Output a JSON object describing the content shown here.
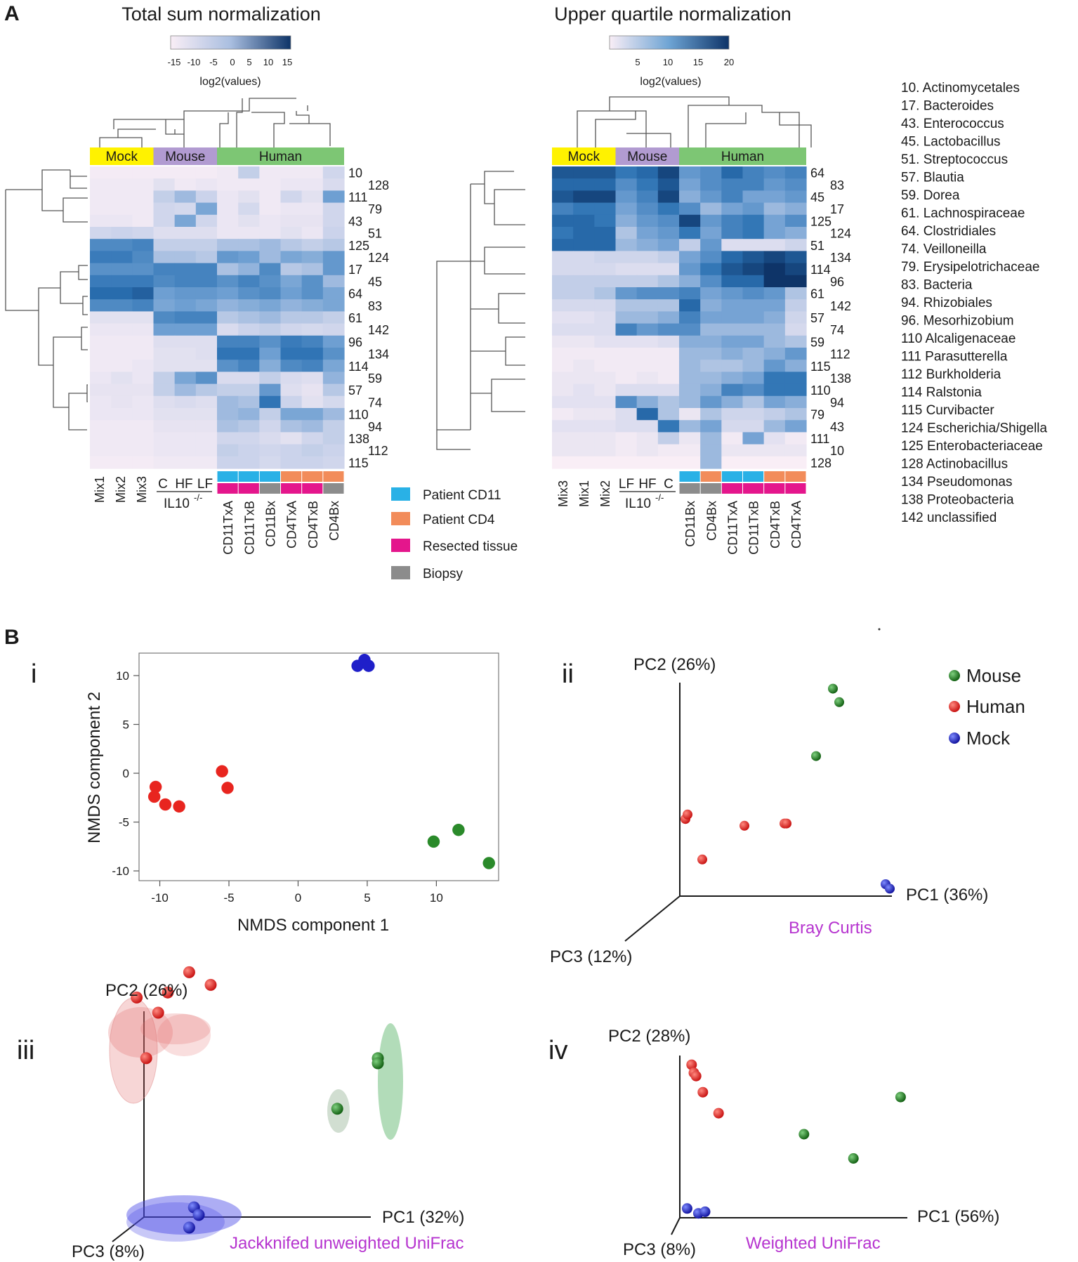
{
  "panels": {
    "A": "A",
    "B": "B"
  },
  "heatmap_common": {
    "groups": [
      "Mock",
      "Mouse",
      "Human"
    ],
    "group_colors": {
      "Mock": "#fff200",
      "Mouse": "#b19bd1",
      "Human": "#7dc674"
    },
    "il10_label": "IL10",
    "il10_super": "-/-",
    "scale_label": "log2(values)"
  },
  "heatmap_left": {
    "title": "Total sum normalization",
    "scale_ticks": [
      "-15",
      "-10",
      "-5",
      "0",
      "5",
      "10",
      "15"
    ],
    "mock_cols": [
      "Mix1",
      "Mix2",
      "Mix3"
    ],
    "mouse_cols": [
      "C",
      "HF",
      "LF"
    ],
    "human_cols": [
      "CD11TxA",
      "CD11TxB",
      "CD11Bx",
      "CD4TxA",
      "CD4TxB",
      "CD4Bx"
    ],
    "human_patient": [
      "CD11",
      "CD11",
      "CD11",
      "CD4",
      "CD4",
      "CD4"
    ],
    "human_tissue": [
      "R",
      "R",
      "B",
      "R",
      "R",
      "B"
    ],
    "rows": [
      "10",
      "128",
      "111",
      "79",
      "43",
      "51",
      "125",
      "124",
      "17",
      "45",
      "64",
      "83",
      "61",
      "142",
      "96",
      "134",
      "114",
      "59",
      "57",
      "74",
      "110",
      "94",
      "138",
      "112",
      "115"
    ]
  },
  "heatmap_right": {
    "title": "Upper quartile normalization",
    "scale_ticks": [
      "5",
      "10",
      "15",
      "20"
    ],
    "mock_cols": [
      "Mix3",
      "Mix1",
      "Mix2"
    ],
    "mouse_cols": [
      "LF",
      "HF",
      "C"
    ],
    "human_cols": [
      "CD11Bx",
      "CD4Bx",
      "CD11TxA",
      "CD11TxB",
      "CD4TxB",
      "CD4TxA"
    ],
    "human_patient": [
      "CD11",
      "CD4",
      "CD11",
      "CD11",
      "CD4",
      "CD4"
    ],
    "human_tissue": [
      "B",
      "B",
      "R",
      "R",
      "R",
      "R"
    ],
    "rows": [
      "64",
      "83",
      "45",
      "17",
      "125",
      "124",
      "51",
      "134",
      "114",
      "96",
      "61",
      "142",
      "57",
      "74",
      "59",
      "112",
      "115",
      "138",
      "110",
      "94",
      "79",
      "43",
      "111",
      "10",
      "128"
    ]
  },
  "annotation_legend": [
    {
      "label": "Patient CD11",
      "color": "#29b1e6"
    },
    {
      "label": "Patient CD4",
      "color": "#f28c5a"
    },
    {
      "label": "Resected tissue",
      "color": "#e4168c"
    },
    {
      "label": "Biopsy",
      "color": "#8c8c8c"
    }
  ],
  "taxa": [
    "10. Actinomycetales",
    "17. Bacteroides",
    "43. Enterococcus",
    "45. Lactobacillus",
    "51. Streptococcus",
    "57. Blautia",
    "59. Dorea",
    "61. Lachnospiraceae",
    "64. Clostridiales",
    "74. Veilloneilla",
    "79. Erysipelotrichaceae",
    "83. Bacteria",
    "94. Rhizobiales",
    "96. Mesorhizobium",
    "110  Alcaligenaceae",
    "111  Parasutterella",
    "112  Burkholderia",
    "114  Ralstonia",
    "115  Curvibacter",
    "124  Escherichia/Shigella",
    "125  Enterobacteriaceae",
    "128  Actinobacillus",
    "134  Pseudomonas",
    "138  Proteobacteria",
    "142  unclassified"
  ],
  "chart_data": [
    {
      "type": "heatmap",
      "title": "Total sum normalization",
      "columns": [
        "Mix1",
        "Mix2",
        "Mix3",
        "C",
        "HF",
        "LF",
        "CD11TxA",
        "CD11TxB",
        "CD11Bx",
        "CD4TxA",
        "CD4TxB",
        "CD4Bx"
      ],
      "rows": [
        "10",
        "128",
        "111",
        "79",
        "43",
        "51",
        "125",
        "124",
        "17",
        "45",
        "64",
        "83",
        "61",
        "142",
        "96",
        "134",
        "114",
        "59",
        "57",
        "74",
        "110",
        "94",
        "138",
        "112",
        "115"
      ],
      "scale": [
        -15,
        15
      ],
      "values": [
        [
          -14,
          -14,
          -14,
          -14,
          -14,
          -14,
          -13,
          -4,
          -13,
          -13,
          -13,
          -6
        ],
        [
          -13,
          -13,
          -13,
          -10,
          -13,
          -12,
          -13,
          -13,
          -13,
          -12,
          -12,
          -8
        ],
        [
          -13,
          -13,
          -13,
          -4,
          -1,
          -5,
          -12,
          -10,
          -13,
          -6,
          -10,
          3
        ],
        [
          -13,
          -13,
          -13,
          -6,
          -7,
          2,
          -12,
          -7,
          -13,
          -12,
          -12,
          -6
        ],
        [
          -12,
          -12,
          -13,
          -6,
          2,
          -6,
          -12,
          -10,
          -12,
          -11,
          -11,
          -6
        ],
        [
          -6,
          -5,
          -6,
          -9,
          -9,
          -9,
          -12,
          -12,
          -12,
          -10,
          -12,
          -5
        ],
        [
          6,
          6,
          7,
          -4,
          -4,
          -4,
          -2,
          -2,
          -1,
          -3,
          -4,
          -3
        ],
        [
          8,
          8,
          6,
          -2,
          -2,
          -3,
          4,
          3,
          -1,
          2,
          1,
          4
        ],
        [
          5,
          5,
          5,
          7,
          7,
          7,
          -2,
          0,
          6,
          -3,
          -2,
          4
        ],
        [
          8,
          8,
          8,
          6,
          7,
          7,
          5,
          7,
          5,
          2,
          5,
          -1
        ],
        [
          10,
          10,
          11,
          3,
          4,
          4,
          3,
          5,
          6,
          3,
          5,
          2
        ],
        [
          6,
          6,
          7,
          2,
          3,
          2,
          0,
          1,
          2,
          0,
          1,
          2
        ],
        [
          -10,
          -10,
          -10,
          6,
          7,
          7,
          -3,
          -2,
          -1,
          -3,
          -3,
          -4
        ],
        [
          -12,
          -12,
          -12,
          3,
          3,
          3,
          -8,
          -5,
          -4,
          -6,
          -7,
          -6
        ],
        [
          -13,
          -13,
          -13,
          -9,
          -9,
          -9,
          7,
          7,
          5,
          8,
          7,
          3
        ],
        [
          -13,
          -13,
          -13,
          -10,
          -10,
          -9,
          9,
          9,
          3,
          9,
          9,
          5
        ],
        [
          -13,
          -13,
          -12,
          -10,
          -10,
          -10,
          5,
          7,
          1,
          6,
          7,
          2
        ],
        [
          -12,
          -10,
          -12,
          -4,
          2,
          5,
          -8,
          -8,
          -4,
          -8,
          -9,
          0
        ],
        [
          -11,
          -11,
          -11,
          -4,
          -1,
          -3,
          -4,
          -4,
          4,
          -9,
          -11,
          -3
        ],
        [
          -12,
          -11,
          -12,
          -9,
          -8,
          -9,
          -1,
          -2,
          9,
          -5,
          -10,
          -7
        ],
        [
          -12,
          -12,
          -12,
          -10,
          -10,
          -10,
          -1,
          0,
          -4,
          2,
          2,
          -1
        ],
        [
          -13,
          -13,
          -13,
          -11,
          -11,
          -11,
          -2,
          -3,
          -6,
          -2,
          -1,
          -4
        ],
        [
          -13,
          -13,
          -13,
          -12,
          -12,
          -12,
          -6,
          -6,
          -8,
          -10,
          -6,
          -4
        ],
        [
          -13,
          -13,
          -13,
          -12,
          -12,
          -12,
          -4,
          -5,
          -6,
          -5,
          -4,
          -5
        ],
        [
          -14,
          -14,
          -14,
          -13,
          -13,
          -13,
          -5,
          -5,
          -7,
          -5,
          -5,
          -6
        ]
      ]
    },
    {
      "type": "heatmap",
      "title": "Upper quartile normalization",
      "columns": [
        "Mix3",
        "Mix1",
        "Mix2",
        "LF",
        "HF",
        "C",
        "CD11Bx",
        "CD4Bx",
        "CD11TxA",
        "CD11TxB",
        "CD4TxB",
        "CD4TxA"
      ],
      "rows": [
        "64",
        "83",
        "45",
        "17",
        "125",
        "124",
        "51",
        "134",
        "114",
        "96",
        "61",
        "142",
        "57",
        "74",
        "59",
        "112",
        "115",
        "138",
        "110",
        "94",
        "79",
        "43",
        "111",
        "10",
        "128"
      ],
      "scale": [
        1,
        20
      ],
      "values": [
        [
          18,
          18,
          18,
          16,
          17,
          19,
          13,
          14,
          17,
          15,
          14,
          15
        ],
        [
          17,
          17,
          17,
          14,
          16,
          18,
          12,
          14,
          15,
          15,
          13,
          14
        ],
        [
          18,
          19,
          19,
          13,
          15,
          19,
          11,
          13,
          15,
          12,
          12,
          13
        ],
        [
          15,
          16,
          16,
          12,
          14,
          16,
          14,
          10,
          12,
          13,
          10,
          11
        ],
        [
          17,
          17,
          16,
          11,
          13,
          14,
          19,
          13,
          15,
          16,
          12,
          14
        ],
        [
          16,
          17,
          17,
          9,
          12,
          13,
          16,
          12,
          15,
          16,
          12,
          11
        ],
        [
          17,
          17,
          17,
          10,
          11,
          12,
          8,
          13,
          5,
          5,
          5,
          7
        ],
        [
          6,
          6,
          7,
          7,
          7,
          8,
          12,
          14,
          17,
          18,
          19,
          18
        ],
        [
          6,
          6,
          6,
          5,
          5,
          5,
          13,
          16,
          18,
          19,
          20,
          19
        ],
        [
          8,
          8,
          8,
          8,
          8,
          9,
          11,
          14,
          17,
          17,
          20,
          20
        ],
        [
          8,
          8,
          9,
          13,
          14,
          14,
          15,
          12,
          13,
          14,
          13,
          9
        ],
        [
          6,
          6,
          6,
          9,
          9,
          9,
          17,
          11,
          12,
          12,
          12,
          8
        ],
        [
          4,
          4,
          5,
          10,
          10,
          11,
          15,
          12,
          12,
          12,
          11,
          7
        ],
        [
          5,
          5,
          5,
          15,
          13,
          14,
          14,
          10,
          10,
          10,
          10,
          6
        ],
        [
          3,
          3,
          4,
          4,
          4,
          5,
          11,
          11,
          12,
          12,
          10,
          9
        ],
        [
          2,
          2,
          2,
          2,
          2,
          2,
          10,
          10,
          11,
          10,
          11,
          13
        ],
        [
          2,
          3,
          2,
          2,
          2,
          2,
          10,
          9,
          9,
          10,
          13,
          11
        ],
        [
          3,
          3,
          3,
          2,
          3,
          2,
          10,
          10,
          11,
          12,
          16,
          16
        ],
        [
          3,
          4,
          3,
          5,
          5,
          5,
          10,
          11,
          15,
          14,
          16,
          16
        ],
        [
          4,
          4,
          4,
          14,
          11,
          9,
          10,
          13,
          11,
          9,
          12,
          11
        ],
        [
          2,
          3,
          3,
          5,
          17,
          9,
          3,
          9,
          7,
          7,
          8,
          9
        ],
        [
          4,
          4,
          4,
          5,
          5,
          16,
          10,
          12,
          6,
          6,
          10,
          12
        ],
        [
          3,
          3,
          3,
          2,
          3,
          8,
          3,
          10,
          2,
          12,
          4,
          2
        ],
        [
          3,
          3,
          3,
          2,
          3,
          2,
          2,
          10,
          3,
          3,
          3,
          3
        ],
        [
          1,
          1,
          1,
          1,
          1,
          1,
          1,
          10,
          1,
          1,
          1,
          1
        ]
      ]
    },
    {
      "type": "scatter",
      "title": "i",
      "xlabel": "NMDS component 1",
      "ylabel": "NMDS component 2",
      "xlim": [
        -11.5,
        14.5
      ],
      "ylim": [
        -11,
        12.3
      ],
      "xticks": [
        "-10",
        "-5",
        "0",
        "5",
        "10"
      ],
      "yticks": [
        "10",
        "5",
        "0",
        "-5",
        "-10"
      ],
      "series": [
        {
          "name": "Human",
          "color": "#e8251f",
          "points": [
            [
              -10.3,
              -1.4
            ],
            [
              -10.4,
              -2.4
            ],
            [
              -9.6,
              -3.2
            ],
            [
              -8.6,
              -3.4
            ],
            [
              -5.5,
              0.2
            ],
            [
              -5.1,
              -1.5
            ]
          ]
        },
        {
          "name": "Mouse",
          "color": "#2a8a2a",
          "points": [
            [
              9.8,
              -7.0
            ],
            [
              11.6,
              -5.8
            ],
            [
              13.8,
              -9.2
            ]
          ]
        },
        {
          "name": "Mock",
          "color": "#1f1fc9",
          "points": [
            [
              4.3,
              11.0
            ],
            [
              4.8,
              11.6
            ],
            [
              5.1,
              11.0
            ]
          ]
        }
      ]
    },
    {
      "type": "scatter",
      "title": "ii",
      "method": "Bray Curtis",
      "axes": [
        "PC1 (36%)",
        "PC2 (26%)",
        "PC3 (12%)"
      ],
      "legend": [
        "Mouse",
        "Human",
        "Mock"
      ],
      "series": [
        {
          "name": "Mouse",
          "color": "#2a8a2a",
          "points": [
            [
              0.72,
              0.92
            ],
            [
              0.75,
              0.86
            ],
            [
              0.64,
              0.62
            ]
          ]
        },
        {
          "name": "Human",
          "color": "#e8251f",
          "points": [
            [
              0.02,
              0.34
            ],
            [
              0.03,
              0.36
            ],
            [
              0.1,
              0.16
            ],
            [
              0.3,
              0.31
            ],
            [
              0.49,
              0.32
            ],
            [
              0.5,
              0.32
            ]
          ]
        },
        {
          "name": "Mock",
          "color": "#1f1fc9",
          "points": [
            [
              0.97,
              0.05
            ],
            [
              0.99,
              0.03
            ]
          ]
        }
      ]
    },
    {
      "type": "scatter",
      "title": "iii",
      "method": "Jackknifed unweighted UniFrac",
      "axes": [
        "PC1 (32%)",
        "PC2 (26%)",
        "PC3 (8%)"
      ],
      "series": [
        {
          "name": "Human",
          "color": "#e8251f",
          "points": [
            [
              -0.06,
              0.86
            ],
            [
              0.07,
              0.88
            ],
            [
              0.16,
              0.96
            ],
            [
              0.25,
              0.91
            ],
            [
              0.03,
              0.8
            ],
            [
              -0.02,
              0.62
            ]
          ]
        },
        {
          "name": "Mouse",
          "color": "#2a8a2a",
          "points": [
            [
              0.95,
              0.62
            ],
            [
              0.78,
              0.42
            ],
            [
              0.95,
              0.6
            ]
          ]
        },
        {
          "name": "Mock",
          "color": "#1f1fc9",
          "points": [
            [
              0.18,
              0.03
            ],
            [
              0.16,
              -0.05
            ],
            [
              0.2,
              0.0
            ]
          ]
        }
      ]
    },
    {
      "type": "scatter",
      "title": "iv",
      "method": "Weighted UniFrac",
      "axes": [
        "PC1 (56%)",
        "PC2 (28%)",
        "PC3 (8%)"
      ],
      "series": [
        {
          "name": "Human",
          "color": "#e8251f",
          "points": [
            [
              0.04,
              0.93
            ],
            [
              0.05,
              0.88
            ],
            [
              0.06,
              0.86
            ],
            [
              0.09,
              0.76
            ],
            [
              0.16,
              0.63
            ]
          ]
        },
        {
          "name": "Mouse",
          "color": "#2a8a2a",
          "points": [
            [
              0.54,
              0.5
            ],
            [
              0.97,
              0.73
            ],
            [
              0.76,
              0.35
            ]
          ]
        },
        {
          "name": "Mock",
          "color": "#1f1fc9",
          "points": [
            [
              0.02,
              0.04
            ],
            [
              0.07,
              0.01
            ],
            [
              0.1,
              0.02
            ]
          ]
        }
      ]
    }
  ]
}
